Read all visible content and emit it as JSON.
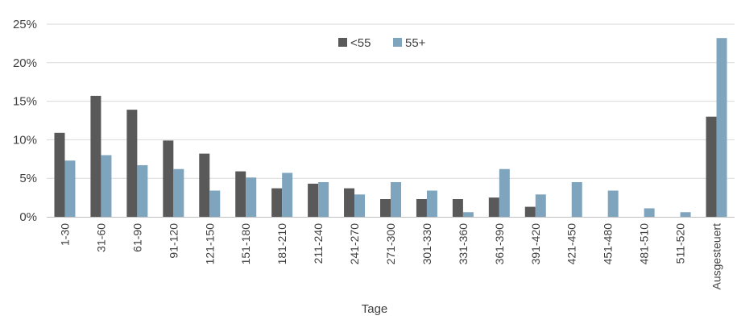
{
  "chart_data": {
    "type": "bar",
    "title": "",
    "xlabel": "Tage",
    "ylabel": "",
    "ylim": [
      0,
      25
    ],
    "yticks": [
      "0%",
      "5%",
      "10%",
      "15%",
      "20%",
      "25%"
    ],
    "grid": true,
    "legend_position": "top-center",
    "categories": [
      "1-30",
      "31-60",
      "61-90",
      "91-120",
      "121-150",
      "151-180",
      "181-210",
      "211-240",
      "241-270",
      "271-300",
      "301-330",
      "331-360",
      "361-390",
      "391-420",
      "421-450",
      "451-480",
      "481-510",
      "511-520",
      "Ausgesteuert"
    ],
    "series": [
      {
        "name": "<55",
        "color": "#595959",
        "values": [
          10.9,
          15.7,
          13.9,
          9.9,
          8.2,
          5.9,
          3.7,
          4.3,
          3.7,
          2.3,
          2.3,
          2.3,
          2.5,
          1.3,
          0,
          0,
          0,
          0,
          13.0
        ]
      },
      {
        "name": "55+",
        "color": "#7fa5be",
        "values": [
          7.3,
          8.0,
          6.7,
          6.2,
          3.4,
          5.1,
          5.7,
          4.5,
          2.9,
          4.5,
          3.4,
          0.6,
          6.2,
          2.9,
          4.5,
          3.4,
          1.1,
          0.6,
          23.2
        ]
      }
    ]
  }
}
